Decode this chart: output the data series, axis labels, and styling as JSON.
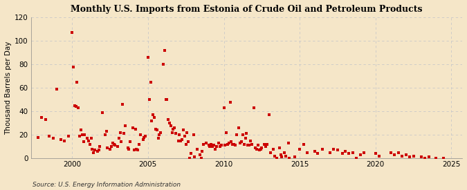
{
  "title": "Monthly U.S. Imports from Estonia of Crude Oil and Petroleum Products",
  "ylabel": "Thousand Barrels per Day",
  "source": "Source: U.S. Energy Information Administration",
  "bg_color": "#f5e6c8",
  "plot_bg_color": "#f5e6c8",
  "marker_color": "#cc0000",
  "marker_size": 9,
  "ylim": [
    0,
    120
  ],
  "yticks": [
    0,
    20,
    40,
    60,
    80,
    100,
    120
  ],
  "xlim_start": 1997.3,
  "xlim_end": 2025.7,
  "xticks": [
    2000,
    2005,
    2010,
    2015,
    2020,
    2025
  ],
  "data": [
    [
      1997.75,
      18
    ],
    [
      1998.0,
      35
    ],
    [
      1998.25,
      33
    ],
    [
      1998.5,
      19
    ],
    [
      1998.75,
      17
    ],
    [
      1999.0,
      59
    ],
    [
      1999.25,
      16
    ],
    [
      1999.5,
      15
    ],
    [
      1999.75,
      19
    ],
    [
      2000.0,
      107
    ],
    [
      2000.08,
      78
    ],
    [
      2000.17,
      45
    ],
    [
      2000.25,
      44
    ],
    [
      2000.33,
      65
    ],
    [
      2000.42,
      43
    ],
    [
      2000.5,
      19
    ],
    [
      2000.58,
      24
    ],
    [
      2000.67,
      20
    ],
    [
      2000.75,
      14
    ],
    [
      2000.83,
      20
    ],
    [
      2001.0,
      17
    ],
    [
      2001.08,
      15
    ],
    [
      2001.17,
      12
    ],
    [
      2001.25,
      17
    ],
    [
      2001.33,
      8
    ],
    [
      2001.42,
      5
    ],
    [
      2001.5,
      7
    ],
    [
      2001.67,
      6
    ],
    [
      2001.75,
      7
    ],
    [
      2001.83,
      10
    ],
    [
      2002.0,
      39
    ],
    [
      2002.17,
      20
    ],
    [
      2002.25,
      23
    ],
    [
      2002.33,
      9
    ],
    [
      2002.5,
      8
    ],
    [
      2002.58,
      10
    ],
    [
      2002.67,
      13
    ],
    [
      2002.75,
      12
    ],
    [
      2002.83,
      11
    ],
    [
      2003.0,
      10
    ],
    [
      2003.08,
      17
    ],
    [
      2003.17,
      22
    ],
    [
      2003.25,
      14
    ],
    [
      2003.33,
      46
    ],
    [
      2003.42,
      21
    ],
    [
      2003.5,
      28
    ],
    [
      2003.67,
      9
    ],
    [
      2003.75,
      8
    ],
    [
      2003.83,
      14
    ],
    [
      2004.0,
      26
    ],
    [
      2004.08,
      7
    ],
    [
      2004.17,
      25
    ],
    [
      2004.25,
      8
    ],
    [
      2004.33,
      7
    ],
    [
      2004.42,
      12
    ],
    [
      2004.5,
      20
    ],
    [
      2004.67,
      16
    ],
    [
      2004.75,
      18
    ],
    [
      2004.83,
      19
    ],
    [
      2005.0,
      86
    ],
    [
      2005.08,
      50
    ],
    [
      2005.17,
      65
    ],
    [
      2005.25,
      32
    ],
    [
      2005.33,
      37
    ],
    [
      2005.42,
      35
    ],
    [
      2005.5,
      25
    ],
    [
      2005.58,
      24
    ],
    [
      2005.67,
      17
    ],
    [
      2005.75,
      20
    ],
    [
      2005.83,
      22
    ],
    [
      2006.0,
      80
    ],
    [
      2006.08,
      92
    ],
    [
      2006.17,
      50
    ],
    [
      2006.25,
      50
    ],
    [
      2006.33,
      33
    ],
    [
      2006.42,
      30
    ],
    [
      2006.5,
      28
    ],
    [
      2006.58,
      22
    ],
    [
      2006.67,
      25
    ],
    [
      2006.75,
      26
    ],
    [
      2006.83,
      21
    ],
    [
      2007.0,
      15
    ],
    [
      2007.08,
      20
    ],
    [
      2007.17,
      15
    ],
    [
      2007.25,
      16
    ],
    [
      2007.33,
      24
    ],
    [
      2007.42,
      19
    ],
    [
      2007.5,
      12
    ],
    [
      2007.58,
      22
    ],
    [
      2007.67,
      14
    ],
    [
      2007.75,
      0
    ],
    [
      2007.83,
      4
    ],
    [
      2008.0,
      20
    ],
    [
      2008.08,
      1
    ],
    [
      2008.25,
      8
    ],
    [
      2008.42,
      3
    ],
    [
      2008.5,
      0
    ],
    [
      2008.58,
      6
    ],
    [
      2008.67,
      12
    ],
    [
      2008.83,
      13
    ],
    [
      2009.0,
      11
    ],
    [
      2009.08,
      10
    ],
    [
      2009.17,
      12
    ],
    [
      2009.25,
      10
    ],
    [
      2009.33,
      11
    ],
    [
      2009.42,
      8
    ],
    [
      2009.5,
      10
    ],
    [
      2009.67,
      13
    ],
    [
      2009.75,
      10
    ],
    [
      2009.83,
      11
    ],
    [
      2010.0,
      43
    ],
    [
      2010.08,
      11
    ],
    [
      2010.17,
      22
    ],
    [
      2010.25,
      12
    ],
    [
      2010.33,
      13
    ],
    [
      2010.42,
      48
    ],
    [
      2010.5,
      14
    ],
    [
      2010.58,
      12
    ],
    [
      2010.67,
      12
    ],
    [
      2010.75,
      11
    ],
    [
      2010.83,
      20
    ],
    [
      2011.0,
      26
    ],
    [
      2011.08,
      13
    ],
    [
      2011.17,
      14
    ],
    [
      2011.25,
      20
    ],
    [
      2011.33,
      12
    ],
    [
      2011.42,
      17
    ],
    [
      2011.5,
      21
    ],
    [
      2011.58,
      11
    ],
    [
      2011.67,
      11
    ],
    [
      2011.75,
      15
    ],
    [
      2011.83,
      12
    ],
    [
      2012.0,
      43
    ],
    [
      2012.08,
      9
    ],
    [
      2012.17,
      8
    ],
    [
      2012.25,
      11
    ],
    [
      2012.33,
      7
    ],
    [
      2012.42,
      8
    ],
    [
      2012.5,
      9
    ],
    [
      2012.67,
      12
    ],
    [
      2012.75,
      10
    ],
    [
      2012.83,
      12
    ],
    [
      2013.0,
      37
    ],
    [
      2013.08,
      5
    ],
    [
      2013.25,
      8
    ],
    [
      2013.33,
      2
    ],
    [
      2013.5,
      0
    ],
    [
      2013.67,
      9
    ],
    [
      2013.75,
      3
    ],
    [
      2013.83,
      1
    ],
    [
      2014.0,
      5
    ],
    [
      2014.08,
      2
    ],
    [
      2014.25,
      13
    ],
    [
      2014.33,
      0
    ],
    [
      2014.67,
      1
    ],
    [
      2015.0,
      8
    ],
    [
      2015.25,
      12
    ],
    [
      2015.5,
      5
    ],
    [
      2016.0,
      6
    ],
    [
      2016.17,
      4
    ],
    [
      2016.5,
      8
    ],
    [
      2017.0,
      5
    ],
    [
      2017.25,
      8
    ],
    [
      2017.5,
      7
    ],
    [
      2017.83,
      4
    ],
    [
      2018.0,
      6
    ],
    [
      2018.25,
      4
    ],
    [
      2018.5,
      5
    ],
    [
      2018.75,
      0
    ],
    [
      2019.0,
      3
    ],
    [
      2019.25,
      5
    ],
    [
      2020.0,
      4
    ],
    [
      2020.25,
      2
    ],
    [
      2021.0,
      5
    ],
    [
      2021.25,
      3
    ],
    [
      2021.5,
      5
    ],
    [
      2021.75,
      2
    ],
    [
      2022.0,
      3
    ],
    [
      2022.25,
      1
    ],
    [
      2022.5,
      2
    ],
    [
      2023.0,
      1
    ],
    [
      2023.25,
      0
    ],
    [
      2023.5,
      1
    ],
    [
      2024.0,
      0
    ],
    [
      2024.5,
      0
    ]
  ]
}
